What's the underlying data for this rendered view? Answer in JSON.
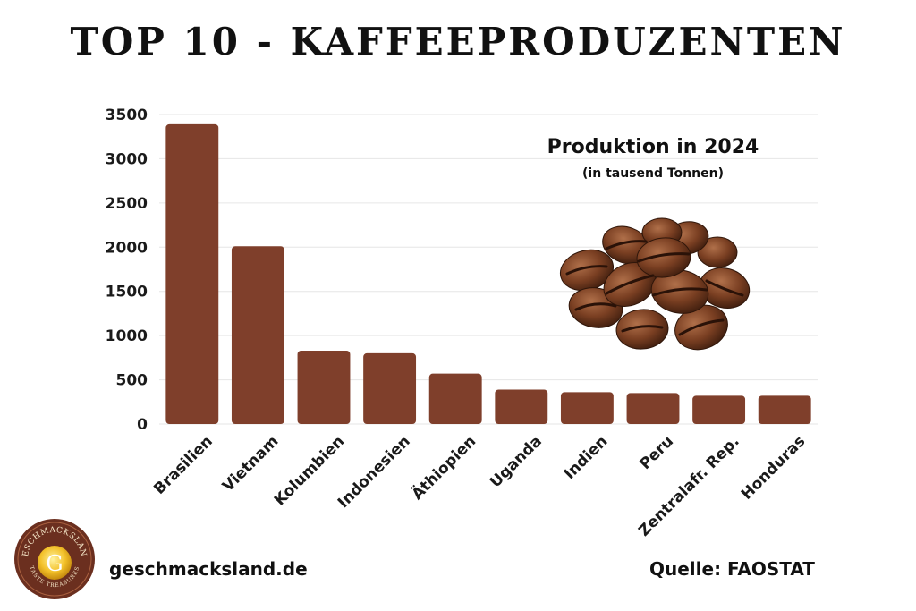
{
  "title": "TOP 10 - KAFFEEPRODUZENTEN",
  "chart_data": {
    "type": "bar",
    "title": "Produktion in 2024",
    "subtitle": "(in tausend Tonnen)",
    "categories": [
      "Brasilien",
      "Vietnam",
      "Kolumbien",
      "Indonesien",
      "Äthiopien",
      "Uganda",
      "Indien",
      "Peru",
      "Zentralafr. Rep.",
      "Honduras"
    ],
    "values": [
      3390,
      2010,
      830,
      800,
      570,
      390,
      360,
      350,
      320,
      320
    ],
    "ylim": [
      0,
      3500
    ],
    "yticks": [
      0,
      500,
      1000,
      1500,
      2000,
      2500,
      3000,
      3500
    ],
    "xlabel": "",
    "ylabel": "",
    "grid": true,
    "bar_color": "#7f3f2b"
  },
  "logo": {
    "text": "GESCHMACKSLAND",
    "tagline": "TASTE TREASURES",
    "letter": "G"
  },
  "footer": {
    "website": "geschmacksland.de",
    "source": "Quelle: FAOSTAT"
  }
}
